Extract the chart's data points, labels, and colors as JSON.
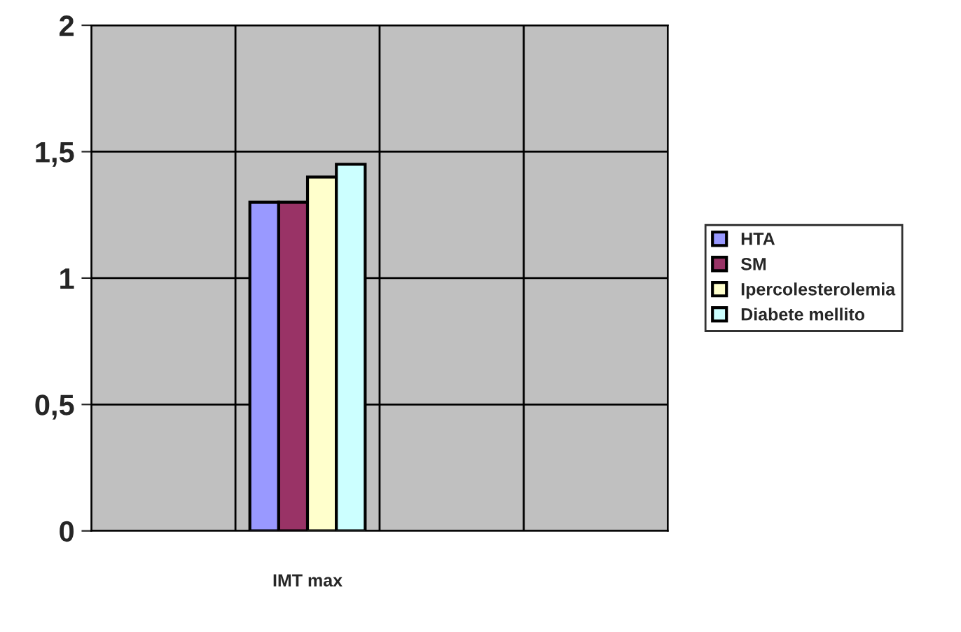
{
  "chart_data": {
    "type": "bar",
    "categories": [
      null,
      "IMT max",
      null,
      null
    ],
    "series": [
      {
        "name": "HTA",
        "color": "#9999ff",
        "values": [
          null,
          1.3,
          null,
          null
        ]
      },
      {
        "name": "SM",
        "color": "#993366",
        "values": [
          null,
          1.3,
          null,
          null
        ]
      },
      {
        "name": "Ipercolesterolemia",
        "color": "#ffffcc",
        "values": [
          null,
          1.4,
          null,
          null
        ]
      },
      {
        "name": "Diabete mellito",
        "color": "#ccffff",
        "values": [
          null,
          1.45,
          null,
          null
        ]
      }
    ],
    "ylim": [
      0,
      2
    ],
    "yticks": [
      0,
      {
        "value": 0.5,
        "label": "0,5"
      },
      1,
      {
        "value": 1.5,
        "label": "1,5"
      },
      2
    ],
    "grid": true,
    "legend": "right"
  }
}
